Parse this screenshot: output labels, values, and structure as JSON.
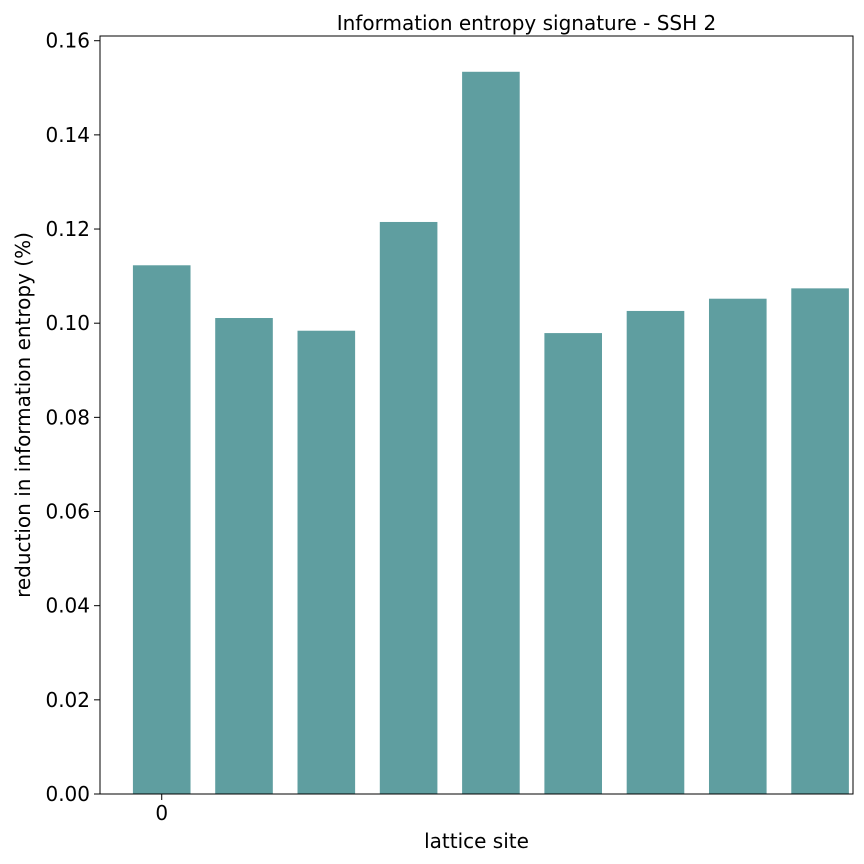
{
  "chart_data": {
    "type": "bar",
    "title": "Information entropy signature - SSH 2",
    "xlabel": "lattice site",
    "ylabel": "reduction in information entropy (%)",
    "x_tick_labels": [
      "0"
    ],
    "x": [
      0,
      1,
      2,
      3,
      4,
      5,
      6,
      7,
      8
    ],
    "values": [
      0.1123,
      0.1011,
      0.0984,
      0.1215,
      0.1534,
      0.0979,
      0.1026,
      0.1052,
      0.1074
    ],
    "ylim": [
      0,
      0.161
    ],
    "yticks": [
      0.0,
      0.02,
      0.04,
      0.06,
      0.08,
      0.1,
      0.12,
      0.14,
      0.16
    ],
    "ytick_labels": [
      "0.00",
      "0.02",
      "0.04",
      "0.06",
      "0.08",
      "0.10",
      "0.12",
      "0.14",
      "0.16"
    ],
    "bar_color": "#5f9ea0",
    "grid": false,
    "legend": "none"
  }
}
